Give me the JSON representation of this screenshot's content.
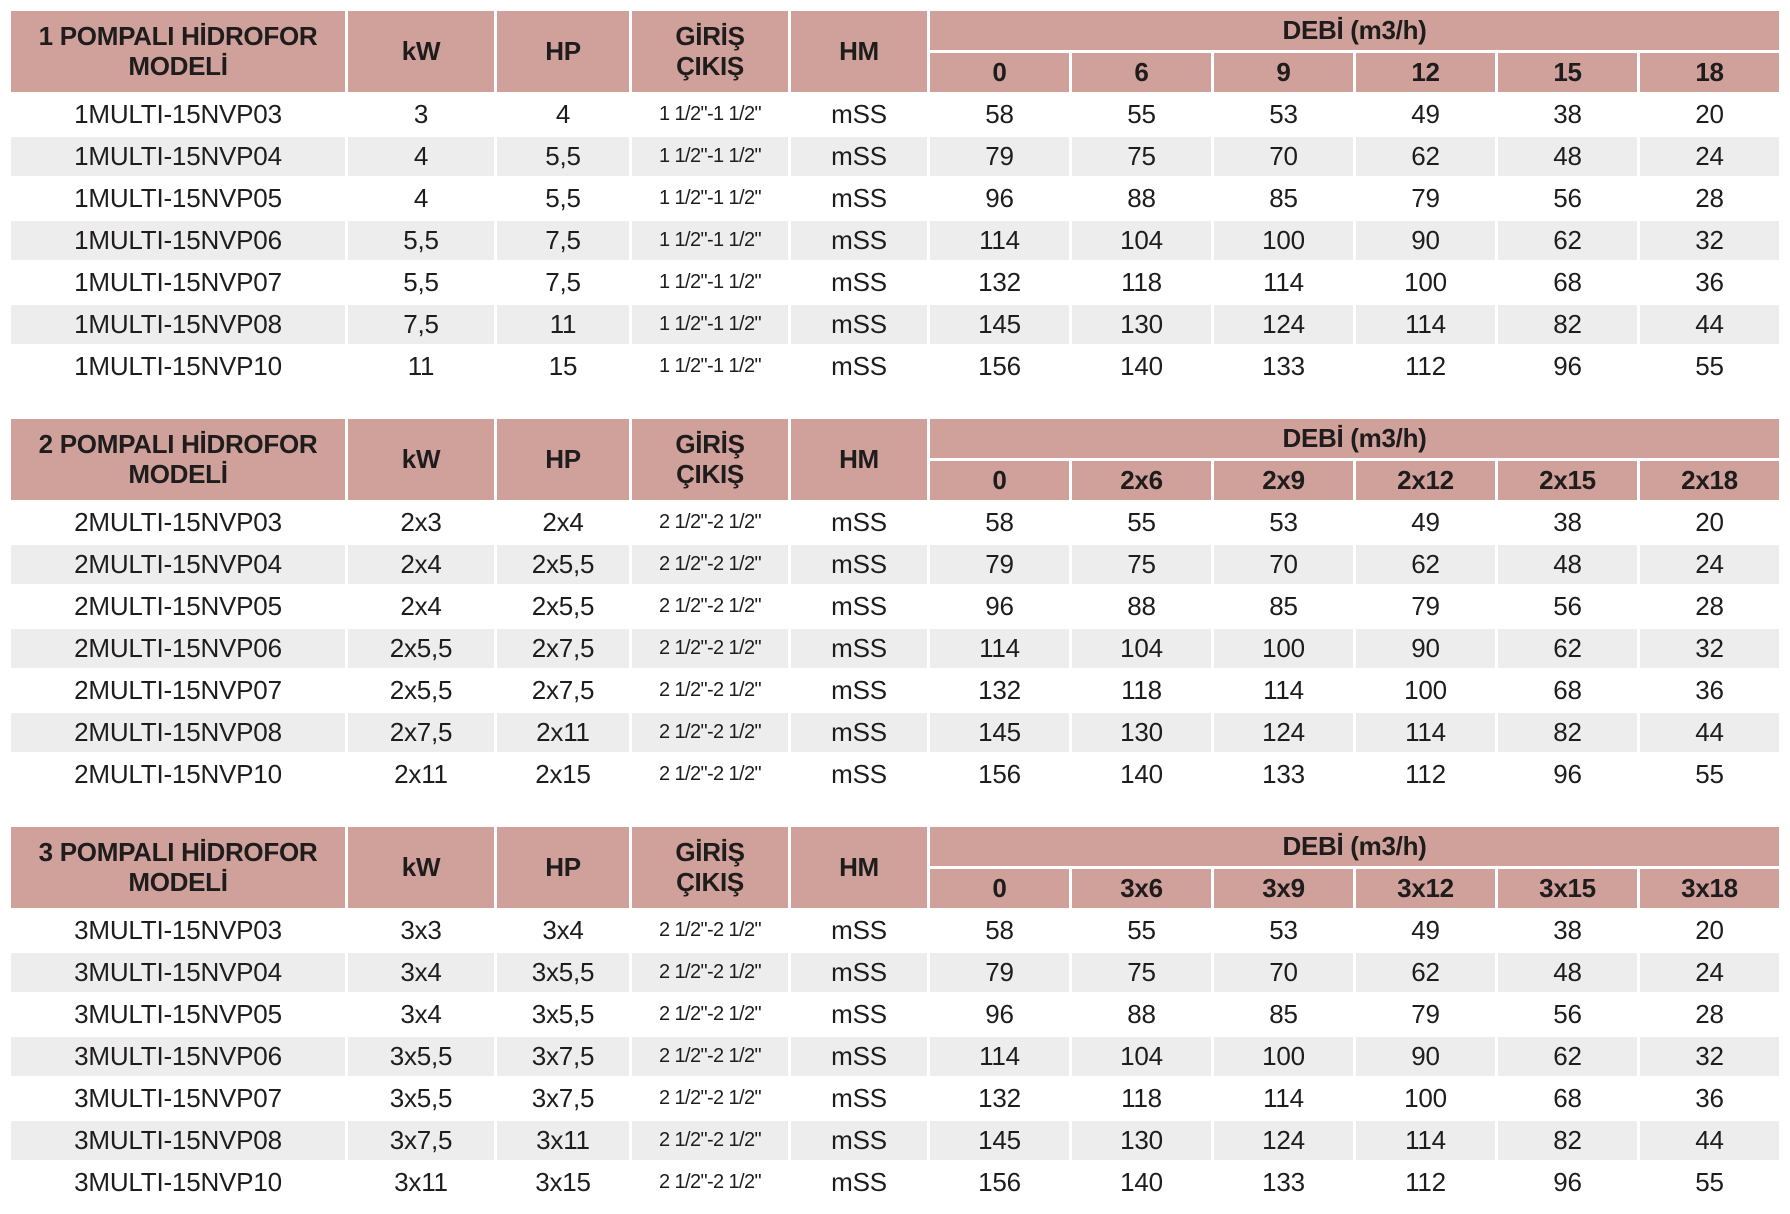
{
  "colors": {
    "header_bg": "#d0a09a",
    "stripe_bg": "#ededed",
    "text": "#1f1c1d"
  },
  "tables": [
    {
      "title": "1 POMPALI HİDROFOR\nMODELİ",
      "columns": {
        "kw": "kW",
        "hp": "HP",
        "giris_cikis": "GİRİŞ\nÇIKIŞ",
        "hm": "HM",
        "debi_group": "DEBİ (m3/h)"
      },
      "debi_columns": [
        "0",
        "6",
        "9",
        "12",
        "15",
        "18"
      ],
      "rows": [
        {
          "model": "1MULTI-15NVP03",
          "kw": "3",
          "hp": "4",
          "giris_cikis": "1 1/2\"-1 1/2\"",
          "hm": "mSS",
          "debi": [
            "58",
            "55",
            "53",
            "49",
            "38",
            "20"
          ]
        },
        {
          "model": "1MULTI-15NVP04",
          "kw": "4",
          "hp": "5,5",
          "giris_cikis": "1 1/2\"-1 1/2\"",
          "hm": "mSS",
          "debi": [
            "79",
            "75",
            "70",
            "62",
            "48",
            "24"
          ]
        },
        {
          "model": "1MULTI-15NVP05",
          "kw": "4",
          "hp": "5,5",
          "giris_cikis": "1 1/2\"-1 1/2\"",
          "hm": "mSS",
          "debi": [
            "96",
            "88",
            "85",
            "79",
            "56",
            "28"
          ]
        },
        {
          "model": "1MULTI-15NVP06",
          "kw": "5,5",
          "hp": "7,5",
          "giris_cikis": "1 1/2\"-1 1/2\"",
          "hm": "mSS",
          "debi": [
            "114",
            "104",
            "100",
            "90",
            "62",
            "32"
          ]
        },
        {
          "model": "1MULTI-15NVP07",
          "kw": "5,5",
          "hp": "7,5",
          "giris_cikis": "1 1/2\"-1 1/2\"",
          "hm": "mSS",
          "debi": [
            "132",
            "118",
            "114",
            "100",
            "68",
            "36"
          ]
        },
        {
          "model": "1MULTI-15NVP08",
          "kw": "7,5",
          "hp": "11",
          "giris_cikis": "1 1/2\"-1 1/2\"",
          "hm": "mSS",
          "debi": [
            "145",
            "130",
            "124",
            "114",
            "82",
            "44"
          ]
        },
        {
          "model": "1MULTI-15NVP10",
          "kw": "11",
          "hp": "15",
          "giris_cikis": "1 1/2\"-1 1/2\"",
          "hm": "mSS",
          "debi": [
            "156",
            "140",
            "133",
            "112",
            "96",
            "55"
          ]
        }
      ]
    },
    {
      "title": "2 POMPALI HİDROFOR\nMODELİ",
      "columns": {
        "kw": "kW",
        "hp": "HP",
        "giris_cikis": "GİRİŞ\nÇIKIŞ",
        "hm": "HM",
        "debi_group": "DEBİ (m3/h)"
      },
      "debi_columns": [
        "0",
        "2x6",
        "2x9",
        "2x12",
        "2x15",
        "2x18"
      ],
      "rows": [
        {
          "model": "2MULTI-15NVP03",
          "kw": "2x3",
          "hp": "2x4",
          "giris_cikis": "2 1/2\"-2 1/2\"",
          "hm": "mSS",
          "debi": [
            "58",
            "55",
            "53",
            "49",
            "38",
            "20"
          ]
        },
        {
          "model": "2MULTI-15NVP04",
          "kw": "2x4",
          "hp": "2x5,5",
          "giris_cikis": "2 1/2\"-2 1/2\"",
          "hm": "mSS",
          "debi": [
            "79",
            "75",
            "70",
            "62",
            "48",
            "24"
          ]
        },
        {
          "model": "2MULTI-15NVP05",
          "kw": "2x4",
          "hp": "2x5,5",
          "giris_cikis": "2 1/2\"-2 1/2\"",
          "hm": "mSS",
          "debi": [
            "96",
            "88",
            "85",
            "79",
            "56",
            "28"
          ]
        },
        {
          "model": "2MULTI-15NVP06",
          "kw": "2x5,5",
          "hp": "2x7,5",
          "giris_cikis": "2 1/2\"-2 1/2\"",
          "hm": "mSS",
          "debi": [
            "114",
            "104",
            "100",
            "90",
            "62",
            "32"
          ]
        },
        {
          "model": "2MULTI-15NVP07",
          "kw": "2x5,5",
          "hp": "2x7,5",
          "giris_cikis": "2 1/2\"-2 1/2\"",
          "hm": "mSS",
          "debi": [
            "132",
            "118",
            "114",
            "100",
            "68",
            "36"
          ]
        },
        {
          "model": "2MULTI-15NVP08",
          "kw": "2x7,5",
          "hp": "2x11",
          "giris_cikis": "2 1/2\"-2 1/2\"",
          "hm": "mSS",
          "debi": [
            "145",
            "130",
            "124",
            "114",
            "82",
            "44"
          ]
        },
        {
          "model": "2MULTI-15NVP10",
          "kw": "2x11",
          "hp": "2x15",
          "giris_cikis": "2 1/2\"-2 1/2\"",
          "hm": "mSS",
          "debi": [
            "156",
            "140",
            "133",
            "112",
            "96",
            "55"
          ]
        }
      ]
    },
    {
      "title": "3 POMPALI HİDROFOR\nMODELİ",
      "columns": {
        "kw": "kW",
        "hp": "HP",
        "giris_cikis": "GİRİŞ\nÇIKIŞ",
        "hm": "HM",
        "debi_group": "DEBİ (m3/h)"
      },
      "debi_columns": [
        "0",
        "3x6",
        "3x9",
        "3x12",
        "3x15",
        "3x18"
      ],
      "rows": [
        {
          "model": "3MULTI-15NVP03",
          "kw": "3x3",
          "hp": "3x4",
          "giris_cikis": "2 1/2\"-2 1/2\"",
          "hm": "mSS",
          "debi": [
            "58",
            "55",
            "53",
            "49",
            "38",
            "20"
          ]
        },
        {
          "model": "3MULTI-15NVP04",
          "kw": "3x4",
          "hp": "3x5,5",
          "giris_cikis": "2 1/2\"-2 1/2\"",
          "hm": "mSS",
          "debi": [
            "79",
            "75",
            "70",
            "62",
            "48",
            "24"
          ]
        },
        {
          "model": "3MULTI-15NVP05",
          "kw": "3x4",
          "hp": "3x5,5",
          "giris_cikis": "2 1/2\"-2 1/2\"",
          "hm": "mSS",
          "debi": [
            "96",
            "88",
            "85",
            "79",
            "56",
            "28"
          ]
        },
        {
          "model": "3MULTI-15NVP06",
          "kw": "3x5,5",
          "hp": "3x7,5",
          "giris_cikis": "2 1/2\"-2 1/2\"",
          "hm": "mSS",
          "debi": [
            "114",
            "104",
            "100",
            "90",
            "62",
            "32"
          ]
        },
        {
          "model": "3MULTI-15NVP07",
          "kw": "3x5,5",
          "hp": "3x7,5",
          "giris_cikis": "2 1/2\"-2 1/2\"",
          "hm": "mSS",
          "debi": [
            "132",
            "118",
            "114",
            "100",
            "68",
            "36"
          ]
        },
        {
          "model": "3MULTI-15NVP08",
          "kw": "3x7,5",
          "hp": "3x11",
          "giris_cikis": "2 1/2\"-2 1/2\"",
          "hm": "mSS",
          "debi": [
            "145",
            "130",
            "124",
            "114",
            "82",
            "44"
          ]
        },
        {
          "model": "3MULTI-15NVP10",
          "kw": "3x11",
          "hp": "3x15",
          "giris_cikis": "2 1/2\"-2 1/2\"",
          "hm": "mSS",
          "debi": [
            "156",
            "140",
            "133",
            "112",
            "96",
            "55"
          ]
        }
      ]
    }
  ]
}
